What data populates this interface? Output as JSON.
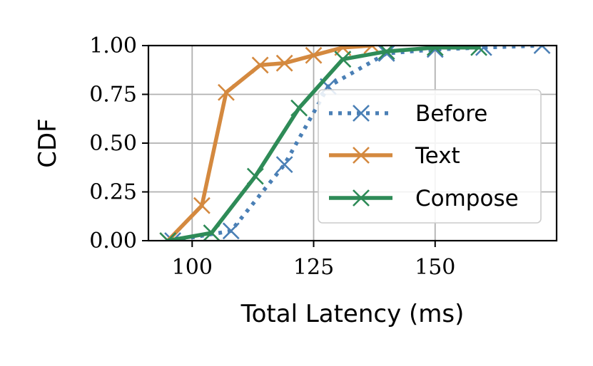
{
  "chart_data": {
    "type": "line",
    "xlabel": "Total Latency (ms)",
    "ylabel": "CDF",
    "xlim": [
      91,
      175
    ],
    "ylim": [
      0,
      1
    ],
    "xticks": [
      100,
      125,
      150
    ],
    "xtick_labels": [
      "100",
      "125",
      "150"
    ],
    "yticks": [
      0,
      0.25,
      0.5,
      0.75,
      1
    ],
    "ytick_labels": [
      "0.00",
      "0.25",
      "0.50",
      "0.75",
      "1.00"
    ],
    "grid": true,
    "legend_position": "center-right",
    "series": [
      {
        "name": "Before",
        "color": "#4a7fb5",
        "line_style": "dotted",
        "marker": "x",
        "x": [
          96,
          108,
          119,
          128,
          140,
          150,
          160,
          172
        ],
        "y": [
          0.0,
          0.05,
          0.39,
          0.79,
          0.96,
          0.98,
          0.99,
          1.0
        ]
      },
      {
        "name": "Text",
        "color": "#d4893f",
        "line_style": "solid",
        "marker": "x",
        "x": [
          95,
          102,
          107,
          114,
          119,
          125,
          131,
          137
        ],
        "y": [
          0.0,
          0.18,
          0.76,
          0.9,
          0.91,
          0.95,
          0.99,
          1.0
        ]
      },
      {
        "name": "Compose",
        "color": "#2e8b57",
        "line_style": "solid",
        "marker": "x",
        "x": [
          95,
          104,
          113,
          122,
          131,
          140,
          150,
          159
        ],
        "y": [
          0.0,
          0.04,
          0.33,
          0.68,
          0.93,
          0.97,
          0.99,
          0.99
        ]
      }
    ]
  }
}
